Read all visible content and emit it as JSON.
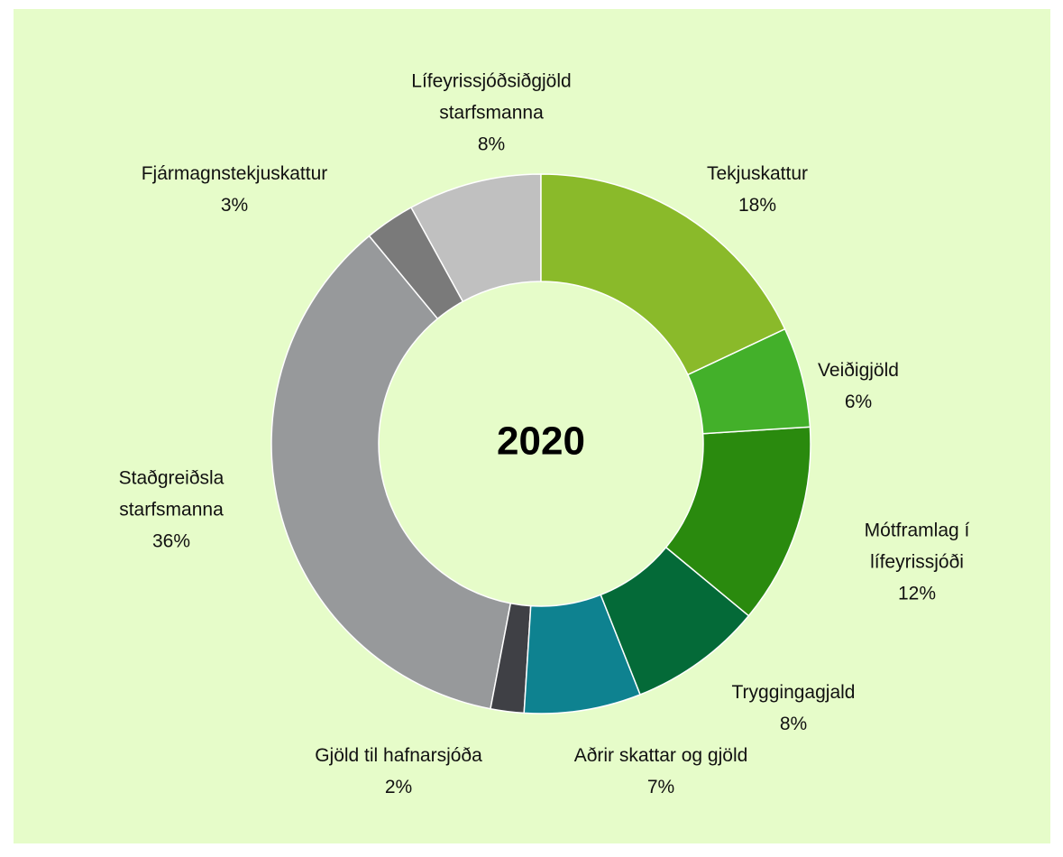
{
  "chart_data": {
    "type": "donut",
    "center_label": "2020",
    "categories": [
      "Tekjuskattur",
      "Veiðigjöld",
      "Mótframlag í lífeyrissjóði",
      "Tryggingagjald",
      "Aðrir skattar og gjöld",
      "Gjöld til hafnarsjóða",
      "Staðgreiðsla starfsmanna",
      "Fjármagnstekjuskattur",
      "Lífeyrissjóðsiðgjöld starfsmanna"
    ],
    "values": [
      18,
      6,
      12,
      8,
      7,
      2,
      36,
      3,
      8
    ],
    "value_labels": [
      "18%",
      "6%",
      "12%",
      "8%",
      "7%",
      "2%",
      "36%",
      "3%",
      "8%"
    ],
    "colors": [
      "#8aba2a",
      "#43b02a",
      "#2a8a0e",
      "#046a38",
      "#0e8290",
      "#3f4045",
      "#97999b",
      "#7a7a7a",
      "#c0c0c0"
    ]
  }
}
